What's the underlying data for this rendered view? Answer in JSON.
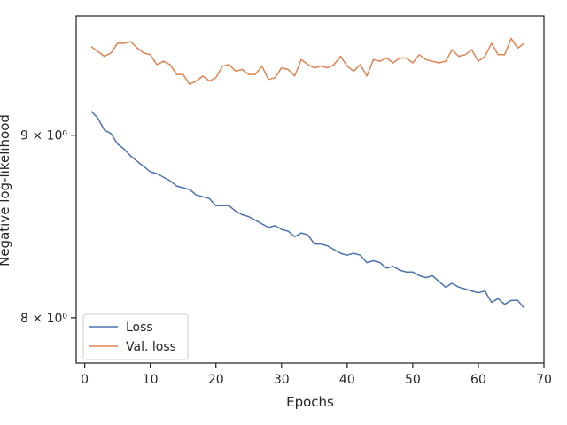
{
  "chart_data": {
    "type": "line",
    "xlabel": "Epochs",
    "ylabel": "Negative log-likelihood",
    "xlim": [
      -1.3,
      70
    ],
    "ylim": [
      7.77,
      9.72
    ],
    "yscale": "log",
    "grid": false,
    "legend_placement": "lower-left",
    "x_ticks": [
      {
        "value": 0,
        "label": "0"
      },
      {
        "value": 10,
        "label": "10"
      },
      {
        "value": 20,
        "label": "20"
      },
      {
        "value": 30,
        "label": "30"
      },
      {
        "value": 40,
        "label": "40"
      },
      {
        "value": 50,
        "label": "50"
      },
      {
        "value": 60,
        "label": "60"
      },
      {
        "value": 70,
        "label": "70"
      }
    ],
    "y_ticks": [
      {
        "value": 8,
        "label": "8 × 10⁰"
      },
      {
        "value": 9,
        "label": "9 × 10⁰"
      }
    ],
    "x": [
      1,
      2,
      3,
      4,
      5,
      6,
      7,
      8,
      9,
      10,
      11,
      12,
      13,
      14,
      15,
      16,
      17,
      18,
      19,
      20,
      21,
      22,
      23,
      24,
      25,
      26,
      27,
      28,
      29,
      30,
      31,
      32,
      33,
      34,
      35,
      36,
      37,
      38,
      39,
      40,
      41,
      42,
      43,
      44,
      45,
      46,
      47,
      48,
      49,
      50,
      51,
      52,
      53,
      54,
      55,
      56,
      57,
      58,
      59,
      60,
      61,
      62,
      63,
      64,
      65,
      66,
      67
    ],
    "series": [
      {
        "name": "Loss",
        "color": "#4c72b0",
        "values": [
          9.14,
          9.1,
          9.03,
          9.01,
          8.95,
          8.92,
          8.88,
          8.85,
          8.82,
          8.79,
          8.78,
          8.76,
          8.74,
          8.71,
          8.7,
          8.69,
          8.66,
          8.65,
          8.64,
          8.6,
          8.6,
          8.6,
          8.57,
          8.55,
          8.54,
          8.52,
          8.5,
          8.48,
          8.49,
          8.47,
          8.46,
          8.43,
          8.45,
          8.44,
          8.39,
          8.39,
          8.38,
          8.36,
          8.34,
          8.33,
          8.34,
          8.33,
          8.29,
          8.3,
          8.29,
          8.26,
          8.27,
          8.25,
          8.24,
          8.24,
          8.22,
          8.21,
          8.22,
          8.19,
          8.16,
          8.18,
          8.16,
          8.15,
          8.14,
          8.13,
          8.14,
          8.08,
          8.1,
          8.07,
          8.09,
          8.09,
          8.05
        ]
      },
      {
        "name": "Val. loss",
        "color": "#dd8452",
        "values": [
          9.53,
          9.5,
          9.47,
          9.49,
          9.55,
          9.55,
          9.56,
          9.52,
          9.49,
          9.48,
          9.42,
          9.44,
          9.42,
          9.36,
          9.36,
          9.3,
          9.32,
          9.35,
          9.32,
          9.34,
          9.41,
          9.42,
          9.38,
          9.39,
          9.36,
          9.36,
          9.41,
          9.33,
          9.34,
          9.4,
          9.39,
          9.35,
          9.45,
          9.42,
          9.4,
          9.41,
          9.4,
          9.42,
          9.47,
          9.41,
          9.38,
          9.42,
          9.35,
          9.45,
          9.44,
          9.46,
          9.43,
          9.46,
          9.46,
          9.43,
          9.48,
          9.45,
          9.44,
          9.43,
          9.44,
          9.51,
          9.47,
          9.48,
          9.51,
          9.44,
          9.47,
          9.55,
          9.48,
          9.48,
          9.58,
          9.52,
          9.55
        ]
      }
    ]
  }
}
